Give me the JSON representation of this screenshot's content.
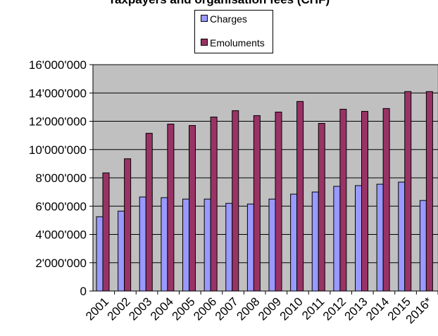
{
  "chart_data": {
    "type": "bar",
    "title": "Taxpayers and organisation fees (CHF)",
    "categories": [
      "2001",
      "2002",
      "2003",
      "2004",
      "2005",
      "2006",
      "2007",
      "2008",
      "2009",
      "2010",
      "2011",
      "2012",
      "2013",
      "2014",
      "2015",
      "2016*"
    ],
    "series": [
      {
        "name": "Charges",
        "color": "#9999ff",
        "values": [
          5250000,
          5650000,
          6650000,
          6600000,
          6500000,
          6500000,
          6200000,
          6150000,
          6500000,
          6850000,
          7000000,
          7400000,
          7450000,
          7550000,
          7700000,
          6400000
        ]
      },
      {
        "name": "Emoluments",
        "color": "#993366",
        "values": [
          8350000,
          9350000,
          11150000,
          11800000,
          11700000,
          12300000,
          12750000,
          12400000,
          12650000,
          13400000,
          11850000,
          12850000,
          12700000,
          12900000,
          14100000,
          14100000
        ]
      }
    ],
    "ylim": [
      0,
      16000000
    ],
    "yticks": [
      0,
      2000000,
      4000000,
      6000000,
      8000000,
      10000000,
      12000000,
      14000000,
      16000000
    ],
    "ytick_labels": [
      "0",
      "2'000'000",
      "4'000'000",
      "6'000'000",
      "8'000'000",
      "10'000'000",
      "12'000'000",
      "14'000'000",
      "16'000'000"
    ],
    "grid": "horizontal",
    "plot_background": "#c0c0c0",
    "legend_position": "top-center"
  }
}
